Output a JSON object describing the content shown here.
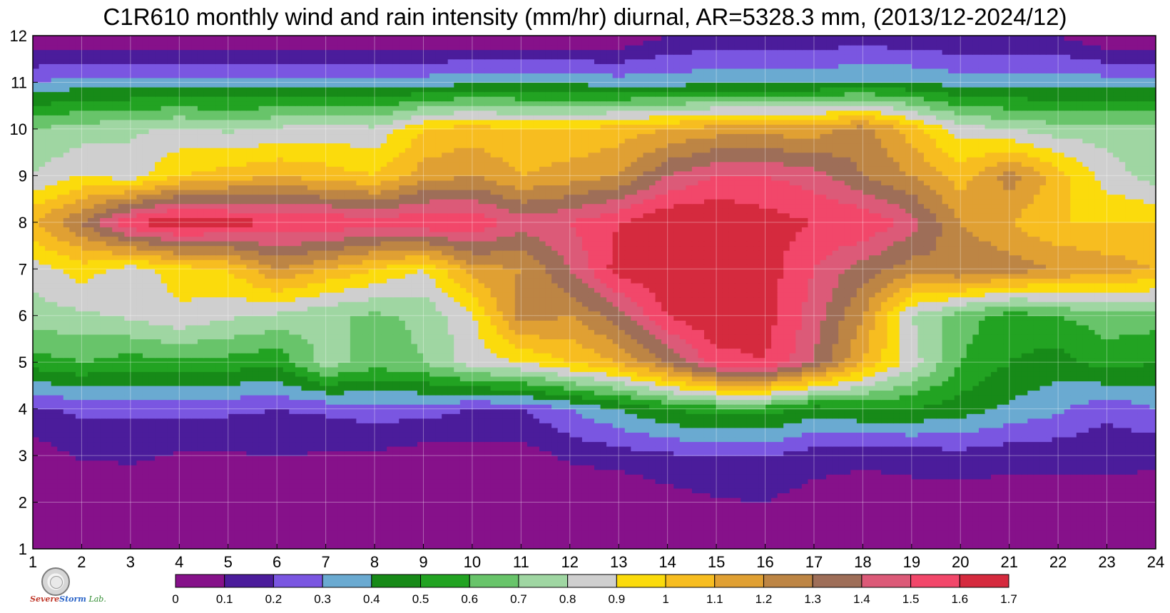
{
  "chart_title": "C1R610 monthly wind and rain intensity (mm/hr) diurnal, AR=5328.3 mm, (2013/12-2024/12)",
  "chart_data": {
    "type": "heatmap",
    "title": "C1R610 monthly wind and rain intensity (mm/hr) diurnal, AR=5328.3 mm, (2013/12-2024/12)",
    "xlabel": "",
    "ylabel": "",
    "x_ticks": [
      "1",
      "2",
      "3",
      "4",
      "5",
      "6",
      "7",
      "8",
      "9",
      "10",
      "11",
      "12",
      "13",
      "14",
      "15",
      "16",
      "17",
      "18",
      "19",
      "20",
      "21",
      "22",
      "23",
      "24"
    ],
    "y_ticks": [
      "1",
      "2",
      "3",
      "4",
      "5",
      "6",
      "7",
      "8",
      "9",
      "10",
      "11",
      "12"
    ],
    "xlim": [
      1,
      24
    ],
    "ylim": [
      1,
      12
    ],
    "grid": true,
    "colorbar": {
      "levels": [
        "0",
        "0.1",
        "0.2",
        "0.3",
        "0.4",
        "0.5",
        "0.6",
        "0.7",
        "0.8",
        "0.9",
        "1",
        "1.1",
        "1.2",
        "1.3",
        "1.4",
        "1.5",
        "1.6",
        "1.7"
      ],
      "colors": [
        "#86118a",
        "#4b1c9b",
        "#7a56e1",
        "#6aaad1",
        "#178a18",
        "#22a322",
        "#68c46a",
        "#9fd6a2",
        "#cfcfcf",
        "#fbdb0c",
        "#f7bd20",
        "#e0a033",
        "#bd8544",
        "#9e6e58",
        "#dc5a78",
        "#f2476a",
        "#d52a3e"
      ]
    },
    "grid_values": [
      [
        0,
        0,
        0,
        0,
        0,
        0,
        0,
        0,
        0,
        0,
        0,
        0,
        0,
        0,
        0,
        0,
        0,
        0,
        0,
        0,
        0,
        0,
        0,
        0
      ],
      [
        0,
        0,
        0,
        0,
        0,
        0,
        0,
        0,
        0,
        0,
        0,
        0,
        0,
        0.05,
        0.09,
        0.1,
        0.05,
        0.05,
        0.05,
        0.05,
        0.05,
        0.05,
        0.05,
        0.05
      ],
      [
        0.05,
        0.11,
        0.12,
        0.09,
        0.09,
        0.1,
        0.09,
        0.08,
        0.05,
        0.05,
        0.05,
        0.12,
        0.15,
        0.18,
        0.2,
        0.2,
        0.15,
        0.12,
        0.14,
        0.16,
        0.13,
        0.13,
        0.14,
        0.12
      ],
      [
        0.18,
        0.22,
        0.22,
        0.22,
        0.22,
        0.2,
        0.22,
        0.25,
        0.24,
        0.2,
        0.2,
        0.3,
        0.4,
        0.5,
        0.55,
        0.55,
        0.45,
        0.5,
        0.5,
        0.45,
        0.38,
        0.32,
        0.22,
        0.3
      ],
      [
        0.55,
        0.6,
        0.55,
        0.58,
        0.56,
        0.52,
        0.75,
        0.65,
        0.7,
        0.85,
        0.9,
        1.0,
        1.1,
        1.3,
        1.55,
        1.6,
        1.4,
        1.1,
        0.85,
        0.6,
        0.5,
        0.45,
        0.55,
        0.5
      ],
      [
        0.75,
        0.78,
        0.82,
        0.88,
        0.82,
        0.78,
        0.72,
        0.68,
        0.72,
        0.88,
        1.25,
        1.2,
        1.35,
        1.6,
        1.7,
        1.65,
        1.45,
        1.2,
        0.8,
        0.65,
        0.55,
        0.6,
        0.65,
        0.65
      ],
      [
        0.85,
        0.95,
        0.85,
        0.95,
        1.0,
        1.2,
        1.1,
        1.0,
        0.9,
        1.15,
        1.2,
        1.4,
        1.65,
        1.7,
        1.7,
        1.65,
        1.5,
        1.35,
        1.25,
        1.3,
        1.25,
        1.2,
        1.15,
        1.1
      ],
      [
        1.1,
        1.3,
        1.6,
        1.7,
        1.65,
        1.6,
        1.6,
        1.55,
        1.6,
        1.6,
        1.45,
        1.5,
        1.6,
        1.7,
        1.7,
        1.65,
        1.6,
        1.6,
        1.45,
        1.2,
        1.1,
        1.0,
        1.0,
        1.0
      ],
      [
        0.8,
        0.9,
        0.85,
        1.0,
        1.05,
        1.1,
        1.05,
        1.0,
        1.15,
        1.2,
        1.1,
        1.15,
        1.2,
        1.4,
        1.5,
        1.5,
        1.45,
        1.3,
        1.2,
        1.05,
        1.25,
        1.05,
        0.85,
        0.75
      ],
      [
        0.7,
        0.75,
        0.78,
        0.82,
        0.78,
        0.82,
        0.85,
        0.82,
        1.0,
        1.05,
        1.0,
        1.0,
        1.05,
        1.1,
        1.15,
        1.15,
        1.15,
        1.25,
        1.05,
        0.85,
        0.8,
        0.75,
        0.75,
        0.75
      ],
      [
        0.3,
        0.35,
        0.35,
        0.35,
        0.35,
        0.35,
        0.35,
        0.35,
        0.35,
        0.38,
        0.38,
        0.38,
        0.35,
        0.35,
        0.38,
        0.38,
        0.38,
        0.4,
        0.4,
        0.35,
        0.35,
        0.35,
        0.35,
        0.35
      ],
      [
        0,
        0,
        0,
        0,
        0,
        0,
        0,
        0,
        0,
        0,
        0,
        0,
        0,
        0.1,
        0.12,
        0.12,
        0.12,
        0.15,
        0.12,
        0.1,
        0.1,
        0.1,
        0,
        0
      ]
    ]
  },
  "logo": {
    "line1": "Severe",
    "line2": "Storm",
    "line3": "Lab."
  }
}
